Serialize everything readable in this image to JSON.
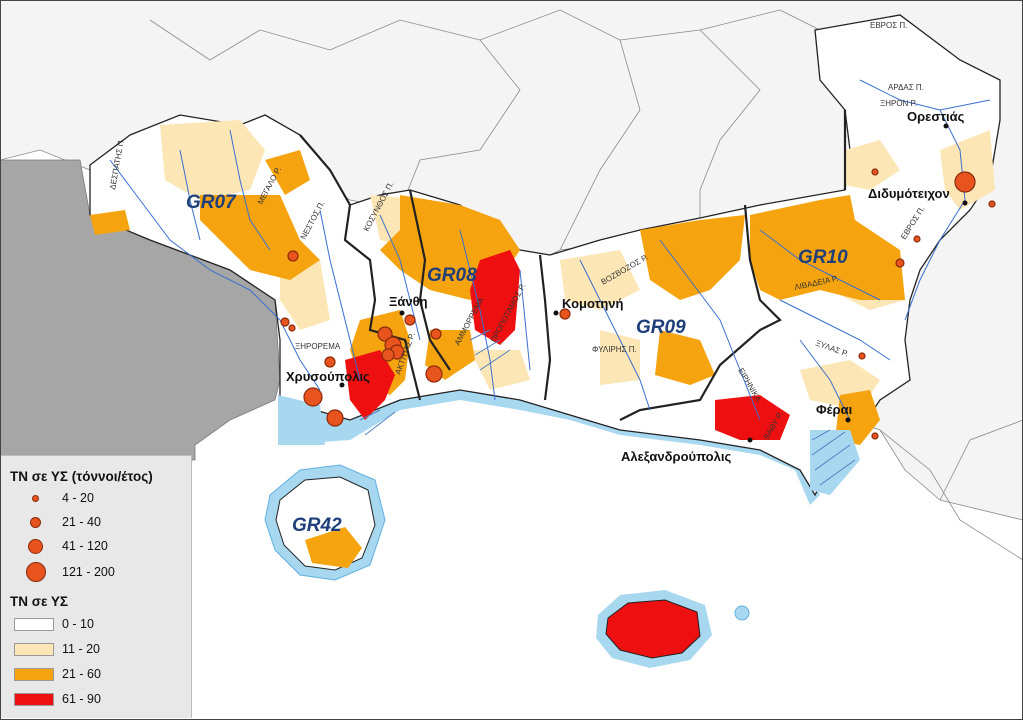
{
  "map": {
    "region_codes": [
      "GR07",
      "GR08",
      "GR09",
      "GR10",
      "GR42"
    ],
    "towns": [
      "Ορεστιάς",
      "Διδυμότειχον",
      "Ξάνθη",
      "Κομοτηνή",
      "Χρυσούπολις",
      "Αλεξανδρούπολις",
      "Φέραι"
    ],
    "rivers": [
      "ΕΒΡΟΣ Π.",
      "ΑΡΔΑΣ Π.",
      "ΞΗΡΟΝ Ρ.",
      "ΕΒΡΟΣ Π.",
      "ΛΙΒΑΔΕΙΑ Ρ.",
      "ΞΥΛΑΣ Ρ.",
      "ΕΙΡΗΝΙΚΑ",
      "ΒΑΘΥ Ρ.",
      "ΦΥΛΙΡΗΣ Π.",
      "ΒΟΖΒΟΖΟΣ Ρ.",
      "ΠΡΟΠΟΤΑΜΟΣ Ρ.",
      "ΑΜΜΟΡΡΕΜΑ",
      "ΚΟΣΥΝΘΟΣ Π.",
      "ΝΕΣΤΟΣ Π.",
      "ΜΕΓΑΛΟ Ρ.",
      "ΔΕΣΠΑΤΗΣ Π.",
      "ΞΗΡΟΡΕΜΑ",
      "ΑΚΤΙΤΙΑΣ Ρ."
    ],
    "colors": {
      "class_0_10": "#ffffff",
      "class_11_20": "#fde6b5",
      "class_21_60": "#f5a30f",
      "class_61_90": "#ee1010",
      "water": "#a8d8f0",
      "outside_land": "#f4f4f4",
      "west_gray": "#a6a6a6",
      "point": "#e8541e",
      "river": "#3a6fd0",
      "code_label": "#1f3f7a"
    }
  },
  "legend": {
    "points_title": "ΤΝ σε ΥΣ (τόννοι/έτος)",
    "point_classes": [
      "4 - 20",
      "21 - 40",
      "41 - 120",
      "121 - 200"
    ],
    "area_title": "ΤΝ σε ΥΣ",
    "area_classes": [
      "0 - 10",
      "11 - 20",
      "21 - 60",
      "61 - 90"
    ]
  }
}
